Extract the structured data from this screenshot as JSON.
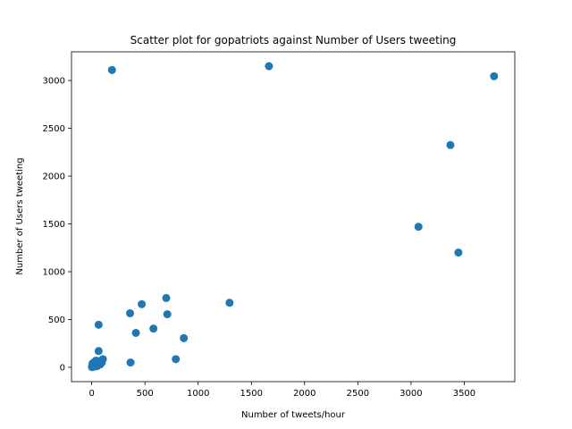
{
  "chart_data": {
    "type": "scatter",
    "title": "Scatter plot for gopatriots against Number of Users tweeting",
    "xlabel": "Number of tweets/hour",
    "ylabel": "Number of Users tweeting",
    "xlim": [
      -190,
      3975
    ],
    "ylim": [
      -150,
      3300
    ],
    "xticks": [
      0,
      500,
      1000,
      1500,
      2000,
      2500,
      3000,
      3500
    ],
    "yticks": [
      0,
      500,
      1000,
      1500,
      2000,
      2500,
      3000
    ],
    "grid": false,
    "marker_color": "#1f77b4",
    "points": [
      {
        "x": 190,
        "y": 3110
      },
      {
        "x": 1665,
        "y": 3150
      },
      {
        "x": 3780,
        "y": 3045
      },
      {
        "x": 3370,
        "y": 2325
      },
      {
        "x": 3070,
        "y": 1470
      },
      {
        "x": 3445,
        "y": 1200
      },
      {
        "x": 700,
        "y": 725
      },
      {
        "x": 470,
        "y": 660
      },
      {
        "x": 1295,
        "y": 675
      },
      {
        "x": 360,
        "y": 565
      },
      {
        "x": 710,
        "y": 555
      },
      {
        "x": 65,
        "y": 445
      },
      {
        "x": 580,
        "y": 405
      },
      {
        "x": 415,
        "y": 360
      },
      {
        "x": 865,
        "y": 305
      },
      {
        "x": 65,
        "y": 170
      },
      {
        "x": 790,
        "y": 85
      },
      {
        "x": 365,
        "y": 50
      },
      {
        "x": 105,
        "y": 85
      },
      {
        "x": 95,
        "y": 50
      },
      {
        "x": 80,
        "y": 30
      },
      {
        "x": 60,
        "y": 65
      },
      {
        "x": 45,
        "y": 40
      },
      {
        "x": 35,
        "y": 20
      },
      {
        "x": 25,
        "y": 55
      },
      {
        "x": 20,
        "y": 10
      },
      {
        "x": 15,
        "y": 30
      },
      {
        "x": 10,
        "y": 5
      },
      {
        "x": 5,
        "y": 15
      },
      {
        "x": 2,
        "y": 2
      },
      {
        "x": 30,
        "y": 8
      },
      {
        "x": 50,
        "y": 12
      },
      {
        "x": 70,
        "y": 45
      },
      {
        "x": 40,
        "y": 70
      },
      {
        "x": 8,
        "y": 40
      },
      {
        "x": 55,
        "y": 25
      }
    ]
  }
}
